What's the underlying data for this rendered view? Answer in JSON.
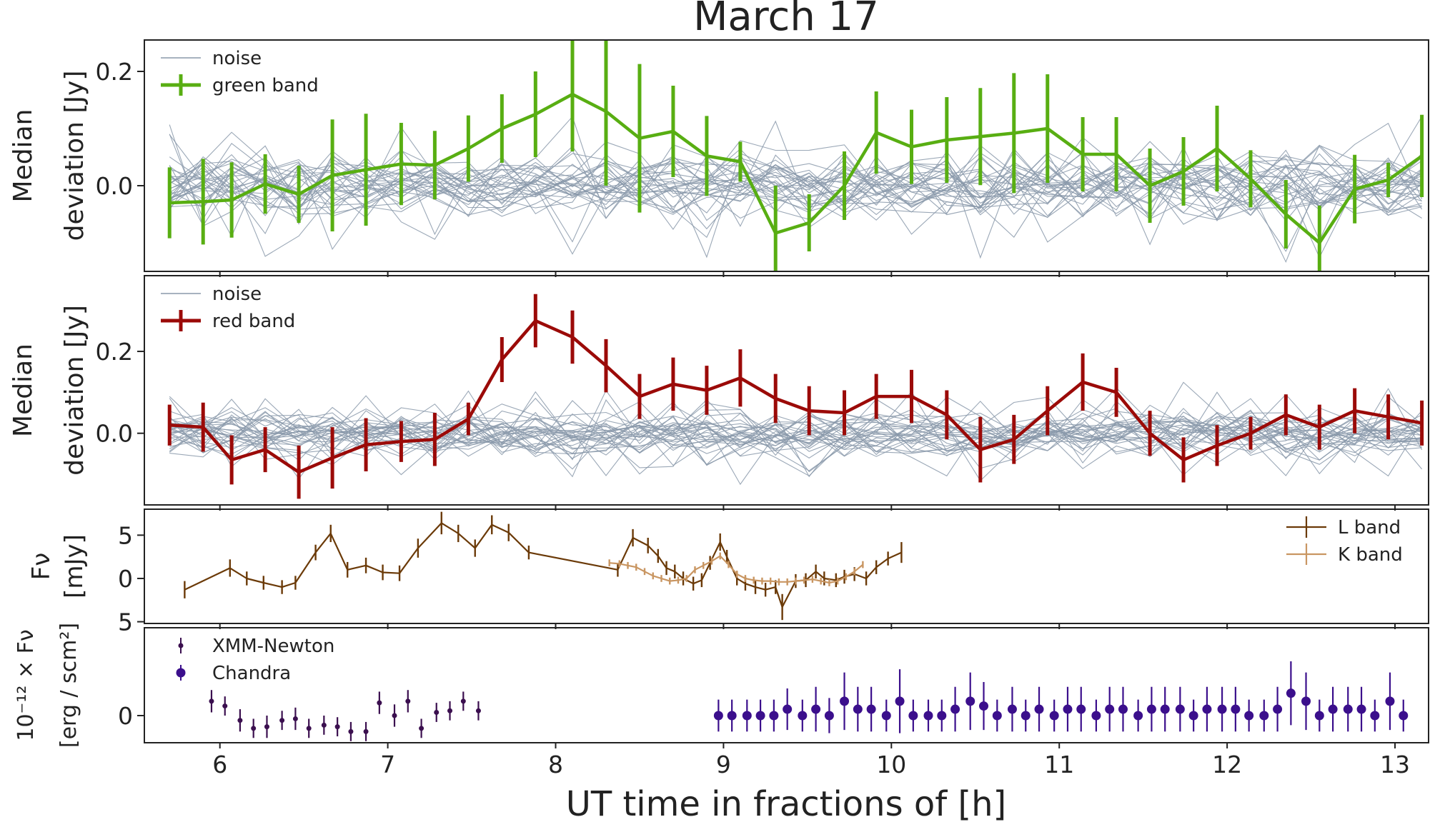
{
  "figure": {
    "title": "March 17",
    "xlabel": "UT time in fractions of [h]",
    "x_ticks": [
      6,
      7,
      8,
      9,
      10,
      11,
      12,
      13
    ],
    "x_range": [
      5.55,
      13.2
    ]
  },
  "chart_data": [
    {
      "panel": "green",
      "type": "line",
      "ylabel_lines": [
        "Median",
        "deviation [Jy]"
      ],
      "ylim": [
        -0.15,
        0.255
      ],
      "y_ticks": [
        {
          "value": 0.2,
          "label": "0.2"
        },
        {
          "value": 0.0,
          "label": "0.0"
        }
      ],
      "legend": [
        "noise",
        "green band"
      ],
      "noise_label": "noise",
      "noise_color": "#8a99aa",
      "series": [
        {
          "name": "green band",
          "color": "#58ae12",
          "x": [
            5.7,
            5.9,
            6.07,
            6.27,
            6.47,
            6.67,
            6.87,
            7.08,
            7.28,
            7.48,
            7.68,
            7.88,
            8.1,
            8.3,
            8.5,
            8.7,
            8.9,
            9.1,
            9.31,
            9.51,
            9.72,
            9.91,
            10.12,
            10.33,
            10.53,
            10.73,
            10.93,
            11.14,
            11.34,
            11.54,
            11.74,
            11.94,
            12.14,
            12.35,
            12.55,
            12.76,
            12.96,
            13.16
          ],
          "y": [
            -0.03,
            -0.028,
            -0.025,
            0.003,
            -0.015,
            0.018,
            0.028,
            0.038,
            0.036,
            0.065,
            0.1,
            0.125,
            0.16,
            0.13,
            0.083,
            0.095,
            0.052,
            0.042,
            -0.083,
            -0.065,
            0.0,
            0.093,
            0.068,
            0.08,
            0.086,
            0.092,
            0.1,
            0.055,
            0.055,
            0.0,
            0.025,
            0.065,
            0.012,
            -0.05,
            -0.1,
            -0.006,
            0.01,
            0.052
          ],
          "err": [
            0.062,
            0.075,
            0.066,
            0.052,
            0.05,
            0.098,
            0.098,
            0.072,
            0.06,
            0.058,
            0.06,
            0.075,
            0.1,
            0.13,
            0.13,
            0.08,
            0.07,
            0.035,
            0.083,
            0.05,
            0.06,
            0.072,
            0.065,
            0.075,
            0.085,
            0.105,
            0.095,
            0.065,
            0.065,
            0.065,
            0.06,
            0.075,
            0.05,
            0.06,
            0.065,
            0.06,
            0.03,
            0.072
          ]
        }
      ]
    },
    {
      "panel": "red",
      "type": "line",
      "ylabel_lines": [
        "Median",
        "deviation [Jy]"
      ],
      "ylim": [
        -0.175,
        0.385
      ],
      "y_ticks": [
        {
          "value": 0.2,
          "label": "0.2"
        },
        {
          "value": 0.0,
          "label": "0.0"
        }
      ],
      "legend": [
        "noise",
        "red band"
      ],
      "noise_label": "noise",
      "noise_color": "#8a99aa",
      "series": [
        {
          "name": "red band",
          "color": "#9b0a08",
          "x": [
            5.7,
            5.9,
            6.07,
            6.27,
            6.47,
            6.67,
            6.87,
            7.08,
            7.28,
            7.48,
            7.68,
            7.88,
            8.1,
            8.3,
            8.5,
            8.7,
            8.9,
            9.1,
            9.31,
            9.51,
            9.72,
            9.91,
            10.12,
            10.33,
            10.53,
            10.73,
            10.93,
            11.14,
            11.34,
            11.54,
            11.74,
            11.94,
            12.14,
            12.35,
            12.55,
            12.76,
            12.96,
            13.16
          ],
          "y": [
            0.02,
            0.015,
            -0.065,
            -0.04,
            -0.095,
            -0.06,
            -0.028,
            -0.02,
            -0.015,
            0.035,
            0.18,
            0.275,
            0.235,
            0.165,
            0.09,
            0.12,
            0.105,
            0.135,
            0.085,
            0.055,
            0.05,
            0.09,
            0.09,
            0.045,
            -0.04,
            -0.015,
            0.055,
            0.125,
            0.1,
            0.0,
            -0.065,
            -0.03,
            0.0,
            0.045,
            0.015,
            0.055,
            0.04,
            0.025
          ],
          "err": [
            0.05,
            0.06,
            0.06,
            0.055,
            0.065,
            0.075,
            0.065,
            0.05,
            0.065,
            0.04,
            0.055,
            0.065,
            0.065,
            0.065,
            0.055,
            0.065,
            0.06,
            0.07,
            0.06,
            0.06,
            0.055,
            0.055,
            0.065,
            0.06,
            0.08,
            0.06,
            0.06,
            0.07,
            0.06,
            0.055,
            0.055,
            0.05,
            0.04,
            0.05,
            0.055,
            0.055,
            0.055,
            0.055
          ]
        }
      ]
    },
    {
      "panel": "infrared",
      "type": "line",
      "ylabel_lines": [
        "Fν",
        "[mJy]"
      ],
      "ylim": [
        -5.2,
        8.0
      ],
      "y_ticks": [
        {
          "value": 5,
          "label": "5"
        },
        {
          "value": 0,
          "label": "0"
        },
        {
          "value": -5,
          "label": "5"
        }
      ],
      "legend": [
        "L band",
        "K band"
      ],
      "series": [
        {
          "name": "L band",
          "color": "#6b3a08",
          "x": [
            5.79,
            6.06,
            6.16,
            6.26,
            6.37,
            6.45,
            6.57,
            6.66,
            6.76,
            6.87,
            6.97,
            7.07,
            7.18,
            7.32,
            7.42,
            7.52,
            7.62,
            7.72,
            7.84,
            8.37,
            8.46,
            8.55,
            8.61,
            8.66,
            8.71,
            8.76,
            8.82,
            8.87,
            8.92,
            8.98,
            9.02,
            9.08,
            9.13,
            9.19,
            9.25,
            9.31,
            9.35,
            9.43,
            9.49,
            9.55,
            9.6,
            9.67,
            9.72,
            9.78,
            9.85,
            9.91,
            9.98,
            10.06
          ],
          "y": [
            -1.3,
            1.2,
            0.0,
            -0.5,
            -1.0,
            -0.5,
            3.0,
            5.2,
            1.0,
            1.5,
            0.7,
            0.6,
            3.5,
            6.4,
            5.2,
            3.5,
            6.2,
            5.3,
            3.0,
            1.0,
            4.7,
            3.8,
            2.6,
            1.2,
            0.8,
            0.0,
            -0.6,
            -0.2,
            1.8,
            4.2,
            2.5,
            0.0,
            -0.6,
            -1.0,
            -1.3,
            -1.0,
            -3.3,
            -0.3,
            -0.2,
            0.8,
            0.0,
            -0.2,
            0.2,
            0.5,
            0.0,
            1.3,
            2.3,
            3.0
          ],
          "err": [
            1.0,
            1.0,
            0.8,
            0.8,
            0.8,
            0.8,
            0.9,
            1.0,
            0.9,
            0.9,
            0.9,
            0.9,
            1.1,
            1.3,
            1.0,
            1.0,
            1.1,
            1.0,
            0.8,
            0.8,
            1.0,
            0.9,
            0.8,
            0.8,
            0.8,
            0.8,
            0.8,
            0.8,
            0.8,
            1.0,
            0.8,
            0.8,
            0.8,
            0.8,
            0.8,
            0.8,
            1.5,
            0.8,
            0.8,
            0.8,
            0.8,
            0.8,
            0.8,
            0.8,
            0.8,
            0.8,
            0.8,
            1.2
          ]
        },
        {
          "name": "K band",
          "color": "#c99662",
          "x": [
            8.32,
            8.38,
            8.43,
            8.48,
            8.53,
            8.58,
            8.63,
            8.68,
            8.73,
            8.78,
            8.83,
            8.88,
            8.93,
            8.98,
            9.03,
            9.08,
            9.13,
            9.18,
            9.23,
            9.28,
            9.33,
            9.38,
            9.43,
            9.48,
            9.53,
            9.58,
            9.63,
            9.68,
            9.73,
            9.78,
            9.83
          ],
          "y": [
            1.8,
            1.7,
            1.5,
            1.3,
            0.8,
            0.3,
            0.0,
            -0.3,
            -0.2,
            0.0,
            1.0,
            1.5,
            2.0,
            2.6,
            1.6,
            0.5,
            0.0,
            -0.2,
            -0.3,
            -0.3,
            -0.4,
            -0.4,
            -0.3,
            -0.2,
            -0.1,
            -0.3,
            -0.5,
            -0.3,
            0.2,
            0.8,
            1.6
          ],
          "err": [
            0.4,
            0.4,
            0.4,
            0.4,
            0.4,
            0.4,
            0.4,
            0.4,
            0.4,
            0.4,
            0.4,
            0.4,
            0.4,
            0.4,
            0.4,
            0.4,
            0.4,
            0.4,
            0.4,
            0.4,
            0.4,
            0.4,
            0.4,
            0.4,
            0.4,
            0.4,
            0.4,
            0.4,
            0.4,
            0.4,
            0.4
          ]
        }
      ]
    },
    {
      "panel": "xray",
      "type": "scatter",
      "ylabel_lines": [
        "10⁻¹² × Fν",
        "[erg / scm²]"
      ],
      "ylim": [
        -0.85,
        2.75
      ],
      "y_ticks": [
        {
          "value": 0,
          "label": "0"
        }
      ],
      "legend": [
        "XMM-Newton",
        "Chandra"
      ],
      "series": [
        {
          "name": "XMM-Newton",
          "color": "#3b0f4f",
          "x": [
            5.95,
            6.03,
            6.12,
            6.2,
            6.28,
            6.37,
            6.45,
            6.53,
            6.62,
            6.7,
            6.78,
            6.87,
            6.95,
            7.04,
            7.12,
            7.2,
            7.29,
            7.37,
            7.45,
            7.54
          ],
          "y": [
            0.45,
            0.3,
            -0.15,
            -0.4,
            -0.35,
            -0.15,
            -0.1,
            -0.4,
            -0.3,
            -0.35,
            -0.5,
            -0.5,
            0.4,
            0.0,
            0.45,
            -0.4,
            0.1,
            0.15,
            0.45,
            0.15
          ],
          "err": [
            0.35,
            0.3,
            0.35,
            0.3,
            0.35,
            0.3,
            0.35,
            0.3,
            0.3,
            0.3,
            0.3,
            0.3,
            0.35,
            0.35,
            0.35,
            0.3,
            0.3,
            0.3,
            0.3,
            0.3
          ]
        },
        {
          "name": "Chandra",
          "color": "#3b0f8c",
          "x": [
            8.97,
            9.05,
            9.14,
            9.22,
            9.3,
            9.38,
            9.47,
            9.55,
            9.63,
            9.72,
            9.8,
            9.88,
            9.97,
            10.05,
            10.13,
            10.22,
            10.3,
            10.38,
            10.47,
            10.55,
            10.63,
            10.72,
            10.8,
            10.88,
            10.97,
            11.05,
            11.13,
            11.22,
            11.3,
            11.38,
            11.47,
            11.55,
            11.63,
            11.72,
            11.8,
            11.88,
            11.97,
            12.05,
            12.13,
            12.22,
            12.3,
            12.38,
            12.47,
            12.55,
            12.63,
            12.72,
            12.8,
            12.88,
            12.97,
            13.05
          ],
          "y": [
            0.0,
            0.0,
            0.0,
            0.0,
            0.0,
            0.2,
            0.0,
            0.2,
            0.0,
            0.45,
            0.2,
            0.2,
            0.0,
            0.45,
            0.0,
            0.0,
            0.0,
            0.2,
            0.45,
            0.3,
            0.0,
            0.2,
            0.0,
            0.2,
            0.0,
            0.2,
            0.2,
            0.0,
            0.2,
            0.2,
            0.0,
            0.2,
            0.2,
            0.2,
            0.0,
            0.2,
            0.2,
            0.2,
            0.0,
            0.0,
            0.2,
            0.7,
            0.45,
            0.0,
            0.2,
            0.2,
            0.2,
            0.0,
            0.45,
            0.0
          ],
          "err": [
            0.5,
            0.5,
            0.5,
            0.5,
            0.5,
            0.65,
            0.5,
            0.7,
            0.55,
            0.9,
            0.7,
            0.7,
            0.5,
            1.0,
            0.5,
            0.5,
            0.5,
            0.7,
            0.9,
            0.75,
            0.5,
            0.7,
            0.5,
            0.7,
            0.5,
            0.7,
            0.7,
            0.5,
            0.7,
            0.7,
            0.5,
            0.7,
            0.7,
            0.7,
            0.5,
            0.7,
            0.7,
            0.7,
            0.5,
            0.5,
            0.7,
            1.0,
            0.9,
            0.5,
            0.7,
            0.7,
            0.7,
            0.5,
            0.9,
            0.5
          ]
        }
      ]
    }
  ]
}
